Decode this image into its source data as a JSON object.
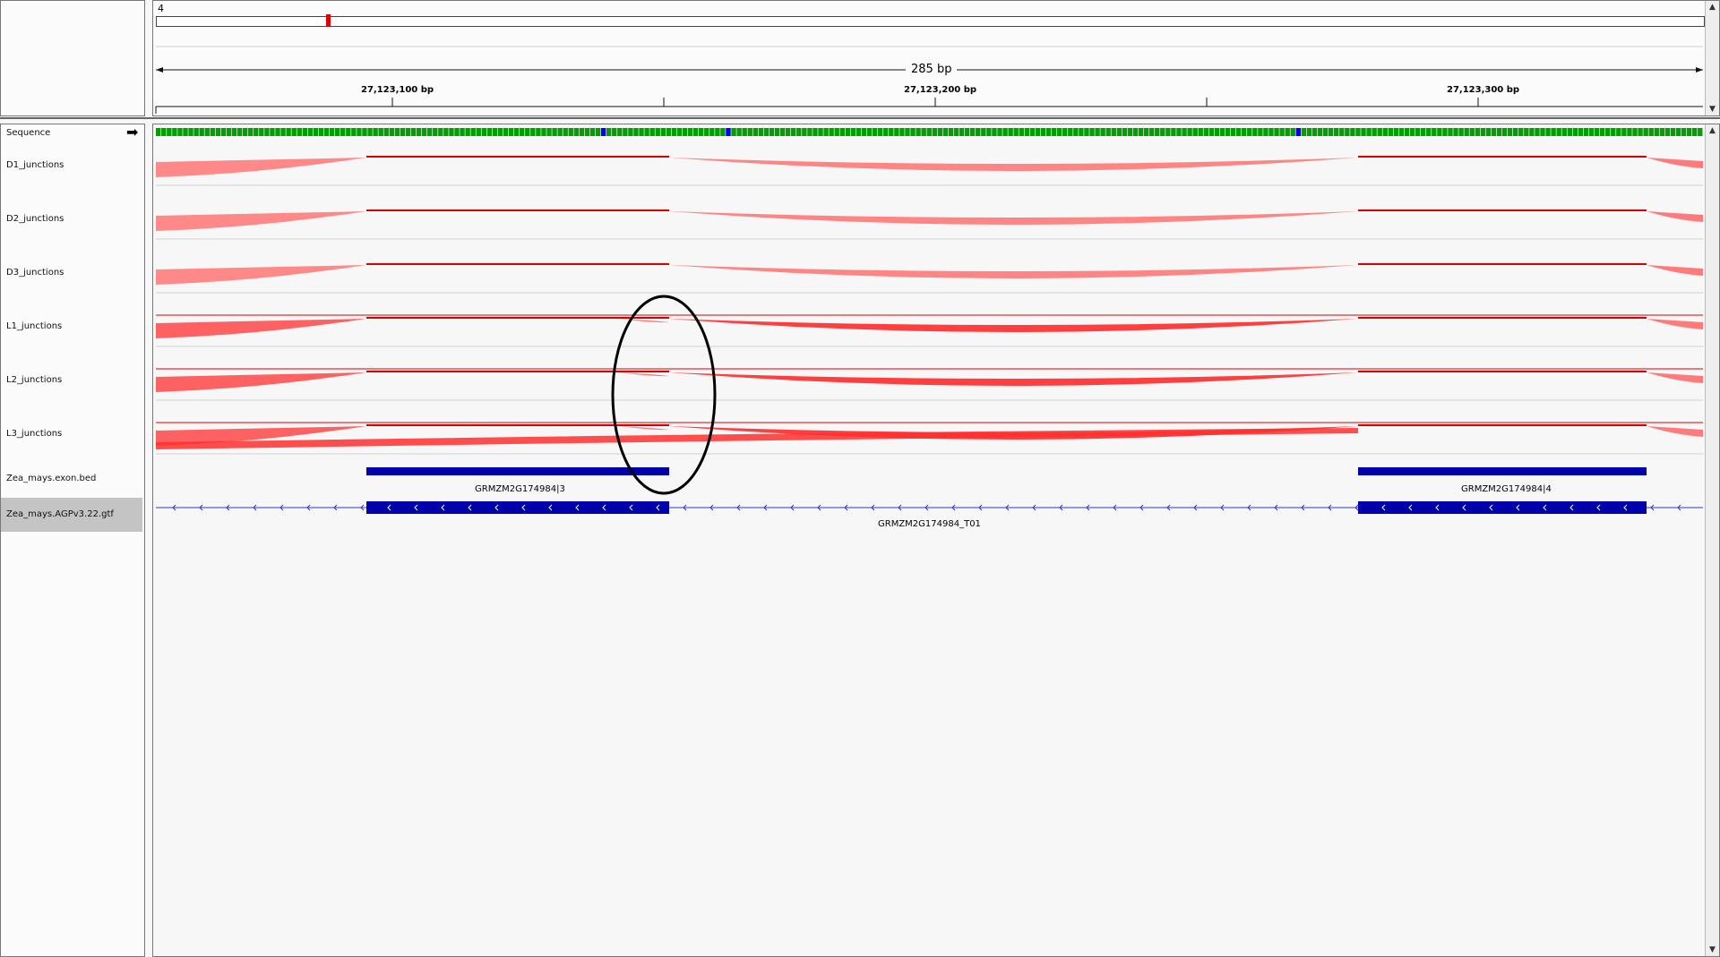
{
  "ruler": {
    "chromosome": "4",
    "span": "285 bp",
    "ticks": [
      "27,123,100 bp",
      "27,123,200 bp",
      "27,123,300 bp"
    ]
  },
  "tracks": [
    {
      "name": "Sequence"
    },
    {
      "name": "D1_junctions"
    },
    {
      "name": "D2_junctions"
    },
    {
      "name": "D3_junctions"
    },
    {
      "name": "L1_junctions"
    },
    {
      "name": "L2_junctions"
    },
    {
      "name": "L3_junctions"
    },
    {
      "name": "Zea_mays.exon.bed"
    },
    {
      "name": "Zea_mays.AGPv3.22.gtf"
    }
  ],
  "features": {
    "exon_left": "GRMZM2G174984|3",
    "exon_right": "GRMZM2G174984|4",
    "transcript": "GRMZM2G174984_T01"
  },
  "colors": {
    "junction_light": "#ff7b7b",
    "junction_strong": "#ff2f2f",
    "junction_line": "#d90000",
    "feature_blue": "#0000aa",
    "annotation_circle": "#000000",
    "base_a": "#00a000",
    "base_c": "#0000ff",
    "base_g": "#d18b00",
    "base_t": "#ff0000"
  },
  "icons": {
    "sequence_strand": "right-arrow-icon"
  }
}
